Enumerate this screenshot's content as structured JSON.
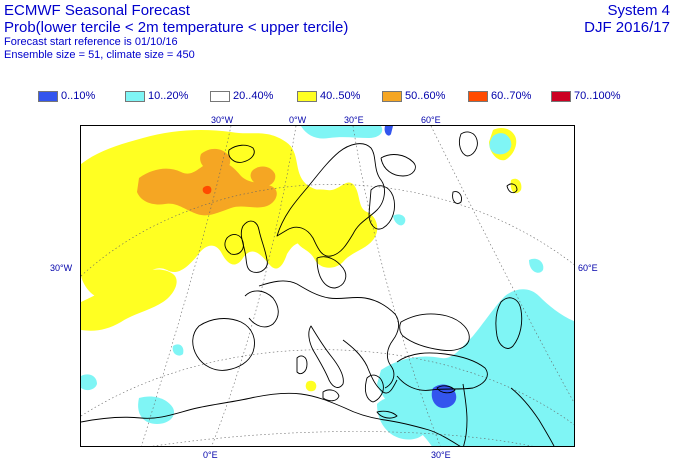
{
  "header": {
    "title": "ECMWF Seasonal Forecast",
    "subtitle": "Prob(lower tercile < 2m temperature < upper tercile)",
    "start_ref": "Forecast start reference is 01/10/16",
    "ensemble": "Ensemble size = 51, climate size = 450",
    "system": "System 4",
    "season": "DJF 2016/17"
  },
  "legend": [
    {
      "label": "0..10%",
      "color": "#3355ee"
    },
    {
      "label": "10..20%",
      "color": "#7ff5f5"
    },
    {
      "label": "20..40%",
      "color": "#ffffff"
    },
    {
      "label": "40..50%",
      "color": "#ffff22"
    },
    {
      "label": "50..60%",
      "color": "#f5a623"
    },
    {
      "label": "60..70%",
      "color": "#ff4b00"
    },
    {
      "label": "70..100%",
      "color": "#cc0022"
    }
  ],
  "graticule_labels": {
    "top": [
      "30°W",
      "0°W",
      "30°E",
      "60°E"
    ],
    "left": "30°W",
    "right": "60°E",
    "bottom": [
      "0°E",
      "30°E"
    ]
  }
}
